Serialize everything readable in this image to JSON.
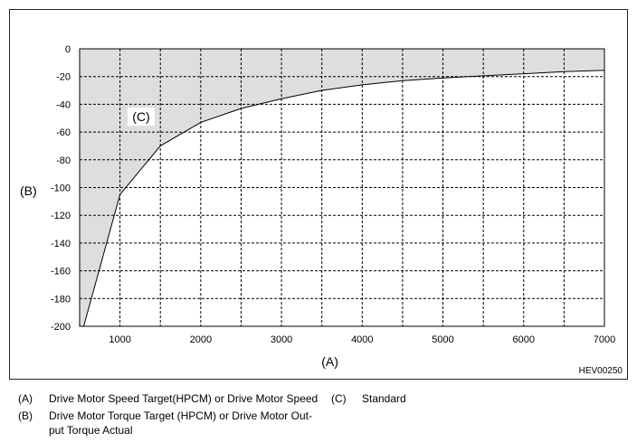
{
  "chart_data": {
    "type": "area",
    "title": "",
    "xlabel": "(A)",
    "ylabel": "(B)",
    "xlim": [
      500,
      7000
    ],
    "ylim": [
      -200,
      0
    ],
    "xticks": [
      1000,
      2000,
      3000,
      4000,
      5000,
      6000,
      7000
    ],
    "yticks": [
      0,
      -20,
      -40,
      -60,
      -80,
      -100,
      -120,
      -140,
      -160,
      -180,
      -200
    ],
    "grid": true,
    "series": [
      {
        "x": [
          550,
          1000,
          1500,
          2000,
          2500,
          3000,
          3500,
          4000,
          4500,
          5000,
          5500,
          6000,
          6500,
          7000
        ],
        "values": [
          -200,
          -105,
          -70,
          -53,
          -43,
          -36,
          -30,
          -26,
          -23,
          -21,
          -19.5,
          -18,
          -16.5,
          -15.5
        ]
      }
    ],
    "area_label": "(C)",
    "colors": {
      "fill": "#dedede",
      "line": "#000000",
      "grid": "#000000"
    }
  },
  "figure_code": "HEV00250",
  "legend": [
    {
      "key": "(A)",
      "text": "Drive Motor Speed Target(HPCM) or Drive Motor Speed"
    },
    {
      "key": "(B)",
      "text_line1": "Drive Motor Torque Target (HPCM) or Drive Motor Out-",
      "text_line2": "put Torque Actual"
    },
    {
      "key": "(C)",
      "text": "Standard"
    }
  ]
}
